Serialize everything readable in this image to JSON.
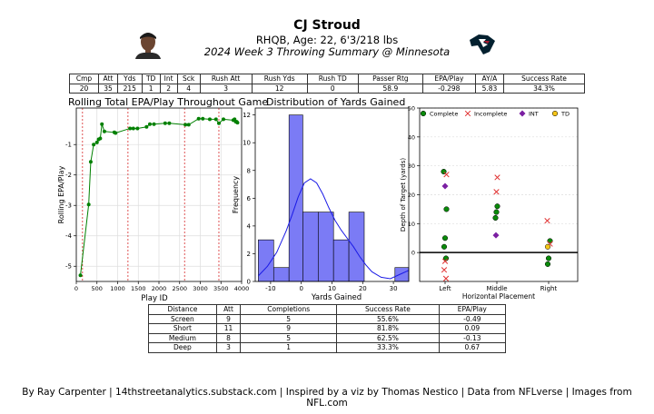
{
  "header": {
    "title": "CJ Stroud",
    "subtitle": "RHQB, Age: 22, 6'3/218 lbs",
    "game_line": "2024 Week 3 Throwing Summary @ Minnesota"
  },
  "stats_table": {
    "headers": [
      "Cmp",
      "Att",
      "Yds",
      "TD",
      "Int",
      "Sck",
      "Rush Att",
      "Rush Yds",
      "Rush TD",
      "Passer Rtg",
      "EPA/Play",
      "AY/A",
      "Success Rate"
    ],
    "values": [
      "20",
      "35",
      "215",
      "1",
      "2",
      "4",
      "3",
      "12",
      "0",
      "58.9",
      "-0.298",
      "5.83",
      "34.3%"
    ]
  },
  "panel_titles": {
    "epa": "Rolling Total EPA/Play Throughout Game",
    "yards": "Distribution of Yards Gained"
  },
  "chart_data": [
    {
      "type": "line",
      "title": "Rolling Total EPA/Play Throughout Game",
      "xlabel": "Play ID",
      "ylabel": "Rolling EPA/Play",
      "xlim": [
        0,
        4000
      ],
      "ylim": [
        -5.5,
        0.2
      ],
      "xticks": [
        0,
        500,
        1000,
        1500,
        2000,
        2500,
        3000,
        3500,
        4000
      ],
      "yticks": [
        -5,
        -4,
        -3,
        -2,
        -1
      ],
      "grid": true,
      "color": "#008000",
      "vlines": [
        150,
        1250,
        2620,
        3450
      ],
      "vline_color": "#d62728",
      "x": [
        100,
        300,
        350,
        420,
        500,
        540,
        580,
        620,
        680,
        920,
        950,
        1300,
        1380,
        1480,
        1700,
        1780,
        1880,
        2150,
        2250,
        2640,
        2720,
        2960,
        3060,
        3230,
        3380,
        3450,
        3560,
        3800,
        3830,
        3860,
        3880,
        3900
      ],
      "y": [
        -5.3,
        -2.97,
        -1.57,
        -1.0,
        -0.93,
        -0.83,
        -0.8,
        -0.33,
        -0.57,
        -0.6,
        -0.62,
        -0.47,
        -0.47,
        -0.47,
        -0.42,
        -0.33,
        -0.33,
        -0.3,
        -0.3,
        -0.35,
        -0.35,
        -0.15,
        -0.15,
        -0.17,
        -0.17,
        -0.3,
        -0.17,
        -0.2,
        -0.17,
        -0.25,
        -0.25,
        -0.28
      ]
    },
    {
      "type": "bar",
      "title": "Distribution of Yards Gained",
      "xlabel": "Yards Gained",
      "ylabel": "Frequency",
      "xlim": [
        -15,
        35
      ],
      "ylim": [
        0,
        12.5
      ],
      "xticks": [
        -10,
        0,
        10,
        20,
        30
      ],
      "yticks": [
        0,
        2,
        4,
        6,
        8,
        10,
        12
      ],
      "bar_color": "#7b7bf5",
      "edge_color": "#1a1ae6",
      "bins": [
        [
          -14,
          -9
        ],
        [
          -9,
          -4
        ],
        [
          -4,
          0.5
        ],
        [
          0.5,
          5.5
        ],
        [
          5.5,
          10.5
        ],
        [
          10.5,
          15.5
        ],
        [
          15.5,
          20.5
        ],
        [
          30.5,
          35
        ]
      ],
      "values": [
        3,
        1,
        12,
        5,
        5,
        3,
        5,
        1
      ],
      "kde_x": [
        -14,
        -11,
        -8,
        -5,
        -3,
        -1,
        1,
        3,
        5,
        7,
        9,
        11,
        13,
        15,
        17,
        19,
        21,
        23,
        26,
        29,
        32,
        35
      ],
      "kde_y": [
        0.4,
        1.1,
        2.1,
        3.6,
        4.8,
        6.1,
        7.1,
        7.4,
        7.1,
        6.3,
        5.3,
        4.4,
        3.7,
        3.1,
        2.5,
        1.8,
        1.2,
        0.7,
        0.3,
        0.2,
        0.5,
        0.8
      ]
    },
    {
      "type": "scatter",
      "xlabel": "Horizontal Placement",
      "ylabel": "Depth of Target (yards)",
      "categories": [
        "Left",
        "Middle",
        "Right"
      ],
      "ylim": [
        -10,
        50
      ],
      "yticks": [
        0,
        10,
        20,
        30,
        40,
        50
      ],
      "grid": true,
      "legend": "top",
      "series": [
        {
          "name": "Complete",
          "color": "#0a8a0a",
          "marker": "circle",
          "points": [
            [
              0,
              28
            ],
            [
              0,
              15
            ],
            [
              0,
              5
            ],
            [
              0,
              2
            ],
            [
              0,
              -2
            ],
            [
              1,
              16
            ],
            [
              1,
              14
            ],
            [
              1,
              12
            ],
            [
              2,
              4
            ],
            [
              2,
              -2
            ],
            [
              2,
              -4
            ]
          ]
        },
        {
          "name": "Incomplete",
          "color": "#e03030",
          "marker": "x",
          "points": [
            [
              0,
              27
            ],
            [
              0,
              -3
            ],
            [
              0,
              -6
            ],
            [
              0,
              -9
            ],
            [
              1,
              26
            ],
            [
              1,
              21
            ],
            [
              2,
              11
            ],
            [
              2,
              3
            ]
          ]
        },
        {
          "name": "INT",
          "color": "#7b1fa2",
          "marker": "diamond",
          "points": [
            [
              0,
              23
            ],
            [
              1,
              6
            ]
          ]
        },
        {
          "name": "TD",
          "color": "#f5c518",
          "marker": "circle",
          "points": [
            [
              2,
              2
            ]
          ]
        }
      ]
    }
  ],
  "distance_table": {
    "headers": [
      "Distance",
      "Att",
      "Completions",
      "Success Rate",
      "EPA/Play"
    ],
    "rows": [
      [
        "Screen",
        "9",
        "5",
        "55.6%",
        "-0.49"
      ],
      [
        "Short",
        "11",
        "9",
        "81.8%",
        "0.09"
      ],
      [
        "Medium",
        "8",
        "5",
        "62.5%",
        "-0.13"
      ],
      [
        "Deep",
        "3",
        "1",
        "33.3%",
        "0.67"
      ]
    ]
  },
  "footer": "By Ray Carpenter | 14thstreetanalytics.substack.com | Inspired by a viz by Thomas Nestico | Data from NFLverse | Images from NFL.com",
  "colors": {
    "epa_line": "#008000",
    "vline": "#d62728",
    "hist_bar": "#7b7bf5",
    "kde": "#1a1ae6",
    "texans_navy": "#03202f",
    "texans_red": "#a71930"
  },
  "icons": {
    "player_headshot": "player-headshot-icon",
    "team_logo": "texans-logo-icon"
  }
}
